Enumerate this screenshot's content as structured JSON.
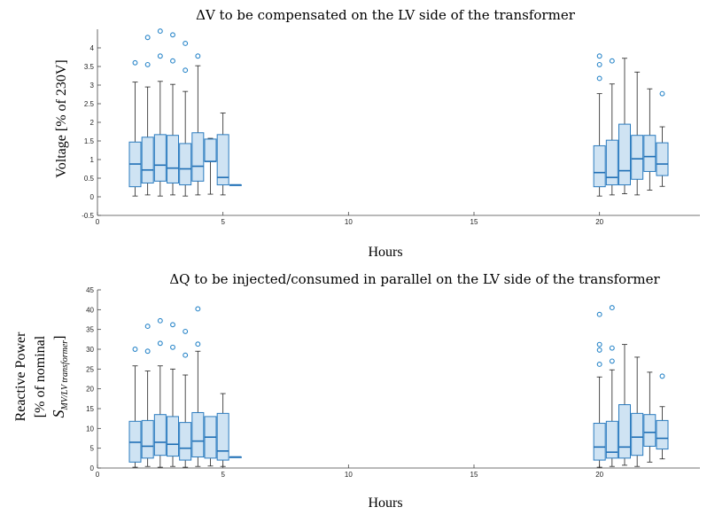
{
  "chart_data": [
    {
      "type": "box",
      "title": "ΔV to be compensated on the LV side of the transformer",
      "xlabel": "Hours",
      "ylabel": "Voltage [% of 230V]",
      "xlim": [
        0,
        24
      ],
      "ylim": [
        -0.5,
        4.5
      ],
      "xticks": [
        "0",
        "5",
        "10",
        "15",
        "20"
      ],
      "yticks": [
        "-0.5",
        "0",
        "0.5",
        "1",
        "1.5",
        "2",
        "2.5",
        "3",
        "3.5",
        "4"
      ],
      "boxes": [
        {
          "x": 1.5,
          "min": 0.02,
          "q1": 0.27,
          "median": 0.88,
          "q3": 1.47,
          "max": 3.08,
          "outliers": [
            3.6
          ]
        },
        {
          "x": 2.0,
          "min": 0.05,
          "q1": 0.37,
          "median": 0.72,
          "q3": 1.6,
          "max": 2.95,
          "outliers": [
            3.55,
            4.28
          ]
        },
        {
          "x": 2.5,
          "min": 0.02,
          "q1": 0.42,
          "median": 0.85,
          "q3": 1.67,
          "max": 3.1,
          "outliers": [
            3.78,
            4.45
          ]
        },
        {
          "x": 3.0,
          "min": 0.05,
          "q1": 0.37,
          "median": 0.77,
          "q3": 1.65,
          "max": 3.02,
          "outliers": [
            3.65,
            4.35
          ]
        },
        {
          "x": 3.5,
          "min": 0.02,
          "q1": 0.32,
          "median": 0.75,
          "q3": 1.43,
          "max": 2.83,
          "outliers": [
            3.4,
            4.12
          ]
        },
        {
          "x": 4.0,
          "min": 0.05,
          "q1": 0.42,
          "median": 0.82,
          "q3": 1.72,
          "max": 3.52,
          "outliers": [
            3.78
          ]
        },
        {
          "x": 4.5,
          "min": 0.07,
          "q1": 0.95,
          "median": 0.95,
          "q3": 1.55,
          "max": 1.57,
          "outliers": []
        },
        {
          "x": 5.0,
          "min": 0.05,
          "q1": 0.32,
          "median": 0.52,
          "q3": 1.67,
          "max": 2.25,
          "outliers": []
        },
        {
          "x": 5.5,
          "min": 0.32,
          "q1": 0.32,
          "median": 0.32,
          "q3": 0.32,
          "max": 0.32,
          "outliers": []
        },
        {
          "x": 20.0,
          "min": 0.02,
          "q1": 0.27,
          "median": 0.65,
          "q3": 1.37,
          "max": 2.77,
          "outliers": [
            3.18,
            3.55,
            3.78
          ]
        },
        {
          "x": 20.5,
          "min": 0.05,
          "q1": 0.32,
          "median": 0.52,
          "q3": 1.52,
          "max": 3.03,
          "outliers": [
            3.65
          ]
        },
        {
          "x": 21.0,
          "min": 0.08,
          "q1": 0.32,
          "median": 0.7,
          "q3": 1.95,
          "max": 3.72,
          "outliers": []
        },
        {
          "x": 21.5,
          "min": 0.05,
          "q1": 0.47,
          "median": 1.02,
          "q3": 1.65,
          "max": 3.35,
          "outliers": []
        },
        {
          "x": 22.0,
          "min": 0.18,
          "q1": 0.68,
          "median": 1.08,
          "q3": 1.65,
          "max": 2.9,
          "outliers": []
        },
        {
          "x": 22.5,
          "min": 0.28,
          "q1": 0.57,
          "median": 0.88,
          "q3": 1.45,
          "max": 1.88,
          "outliers": [
            2.77
          ]
        }
      ]
    },
    {
      "type": "box",
      "title": "ΔQ to be injected/consumed in parallel on the LV side of the transformer",
      "xlabel": "Hours",
      "ylabel": [
        "Reactive Power",
        "[% of nominal",
        "S",
        "MV/LV transformer",
        "]"
      ],
      "xlim": [
        0,
        24
      ],
      "ylim": [
        0,
        45
      ],
      "xticks": [
        "0",
        "5",
        "10",
        "15",
        "20"
      ],
      "yticks": [
        "0",
        "5",
        "10",
        "15",
        "20",
        "25",
        "30",
        "35",
        "40",
        "45"
      ],
      "boxes": [
        {
          "x": 1.5,
          "min": 0.2,
          "q1": 1.5,
          "median": 6.5,
          "q3": 11.8,
          "max": 25.8,
          "outliers": [
            30.0
          ]
        },
        {
          "x": 2.0,
          "min": 0.4,
          "q1": 2.5,
          "median": 5.5,
          "q3": 12.0,
          "max": 24.5,
          "outliers": [
            29.5,
            35.8
          ]
        },
        {
          "x": 2.5,
          "min": 0.2,
          "q1": 3.2,
          "median": 6.5,
          "q3": 13.5,
          "max": 25.8,
          "outliers": [
            31.5,
            37.2
          ]
        },
        {
          "x": 3.0,
          "min": 0.4,
          "q1": 3.0,
          "median": 6.0,
          "q3": 13.0,
          "max": 25.0,
          "outliers": [
            30.5,
            36.2
          ]
        },
        {
          "x": 3.5,
          "min": 0.2,
          "q1": 2.0,
          "median": 5.0,
          "q3": 11.5,
          "max": 23.5,
          "outliers": [
            28.5,
            34.5
          ]
        },
        {
          "x": 4.0,
          "min": 0.4,
          "q1": 2.8,
          "median": 6.8,
          "q3": 14.0,
          "max": 29.5,
          "outliers": [
            31.3,
            40.2
          ]
        },
        {
          "x": 4.5,
          "min": 0.5,
          "q1": 2.5,
          "median": 7.8,
          "q3": 13.0,
          "max": 13.0,
          "outliers": []
        },
        {
          "x": 5.0,
          "min": 0.4,
          "q1": 2.0,
          "median": 4.3,
          "q3": 13.8,
          "max": 18.8,
          "outliers": []
        },
        {
          "x": 5.5,
          "min": 2.8,
          "q1": 2.8,
          "median": 2.8,
          "q3": 2.8,
          "max": 2.8,
          "outliers": []
        },
        {
          "x": 20.0,
          "min": 0.2,
          "q1": 2.0,
          "median": 5.3,
          "q3": 11.3,
          "max": 23.0,
          "outliers": [
            26.2,
            29.8,
            31.2,
            38.8
          ]
        },
        {
          "x": 20.5,
          "min": 0.4,
          "q1": 2.5,
          "median": 4.0,
          "q3": 11.8,
          "max": 24.8,
          "outliers": [
            27.0,
            30.3,
            40.5
          ]
        },
        {
          "x": 21.0,
          "min": 0.7,
          "q1": 2.5,
          "median": 5.3,
          "q3": 16.0,
          "max": 31.2,
          "outliers": []
        },
        {
          "x": 21.5,
          "min": 0.4,
          "q1": 3.2,
          "median": 7.8,
          "q3": 13.8,
          "max": 28.0,
          "outliers": []
        },
        {
          "x": 22.0,
          "min": 1.5,
          "q1": 5.5,
          "median": 9.0,
          "q3": 13.5,
          "max": 24.2,
          "outliers": []
        },
        {
          "x": 22.5,
          "min": 2.3,
          "q1": 4.8,
          "median": 7.5,
          "q3": 12.0,
          "max": 15.5,
          "outliers": [
            23.2
          ]
        }
      ]
    }
  ]
}
